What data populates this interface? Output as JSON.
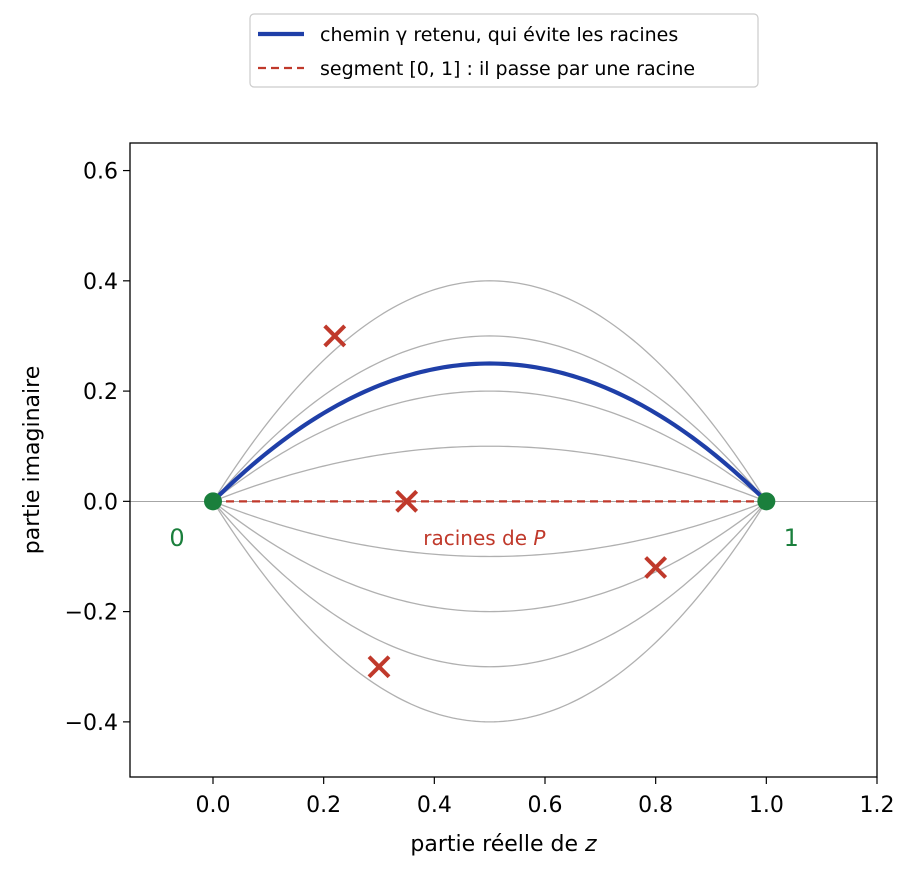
{
  "chart_data": {
    "type": "line",
    "xlabel": "partie réelle de z",
    "ylabel": "partie imaginaire",
    "xlim": [
      -0.15,
      1.2
    ],
    "ylim": [
      -0.5,
      0.65
    ],
    "xticks": [
      0.0,
      0.2,
      0.4,
      0.6,
      0.8,
      1.0,
      1.2
    ],
    "xtick_labels": [
      "0.0",
      "0.2",
      "0.4",
      "0.6",
      "0.8",
      "1.0",
      "1.2"
    ],
    "yticks": [
      -0.4,
      -0.2,
      0.0,
      0.2,
      0.4,
      0.6
    ],
    "ytick_labels": [
      "−0.4",
      "−0.2",
      "0.0",
      "0.2",
      "0.4",
      "0.6"
    ],
    "grid": false,
    "legend_position": "top-center-outside",
    "legend": [
      {
        "label": "chemin γ retenu, qui évite les racines",
        "style": "solid",
        "color": "#1f3fa8"
      },
      {
        "label": "segment [0, 1] : il passe par une racine",
        "style": "dashed",
        "color": "#c0392b"
      }
    ],
    "path_family": {
      "description": "z(t) = t + i*h*4*t*(1-t)",
      "heights": [
        0.4,
        0.3,
        0.2,
        0.1,
        -0.1,
        -0.2,
        -0.3,
        -0.4
      ],
      "color": "#b0b0b0"
    },
    "chosen_path": {
      "height": 0.25,
      "color": "#1f3fa8"
    },
    "segment": {
      "from": [
        0,
        0
      ],
      "to": [
        1,
        0
      ],
      "color": "#c0392b"
    },
    "roots": [
      {
        "x": 0.22,
        "y": 0.3
      },
      {
        "x": 0.35,
        "y": 0.0
      },
      {
        "x": 0.8,
        "y": -0.12
      },
      {
        "x": 0.3,
        "y": -0.3
      }
    ],
    "roots_color": "#c0392b",
    "roots_label": {
      "text": "racines de P",
      "x": 0.38,
      "y": -0.065
    },
    "endpoints": [
      {
        "x": 0,
        "y": 0,
        "label": "0",
        "label_x": -0.065,
        "label_y": -0.065
      },
      {
        "x": 1,
        "y": 0,
        "label": "1",
        "label_x": 1.045,
        "label_y": -0.065
      }
    ],
    "endpoint_color": "#1a7f3c"
  }
}
